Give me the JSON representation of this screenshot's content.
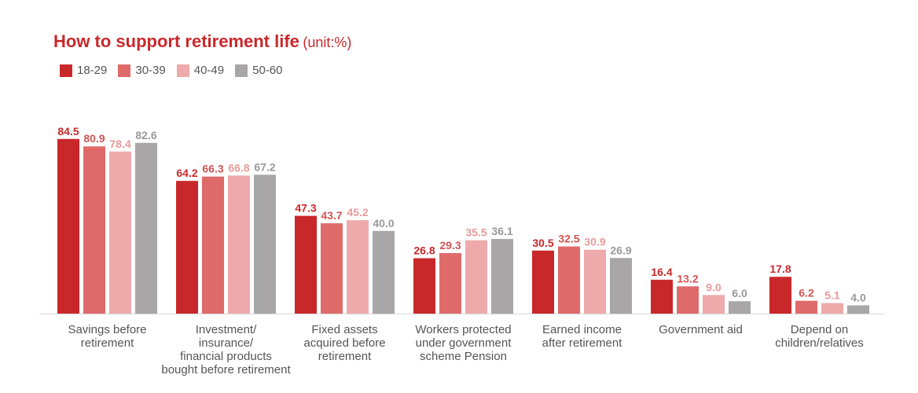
{
  "title": "How to support retirement life",
  "unit": "(unit:%)",
  "colors": [
    "#c9282b",
    "#df6a6a",
    "#eeaaaa",
    "#a8a6a6"
  ],
  "chart_data": {
    "type": "bar",
    "title": "How to support retirement life",
    "unit": "(unit:%)",
    "legend_position": "top-left",
    "grid": false,
    "categories": [
      [
        "Savings before",
        "retirement"
      ],
      [
        "Investment/",
        "insurance/",
        "financial products",
        "bought before retirement"
      ],
      [
        "Fixed assets",
        "acquired before",
        "retirement"
      ],
      [
        "Workers protected",
        "under government",
        "scheme Pension"
      ],
      [
        "Earned income",
        "after retirement"
      ],
      [
        "Government aid"
      ],
      [
        "Depend on",
        "children/relatives"
      ]
    ],
    "series": [
      {
        "name": "18-29",
        "color": "#c9282b",
        "label_color": "#c9282b",
        "values": [
          84.5,
          64.2,
          47.3,
          26.8,
          30.5,
          16.4,
          17.8
        ]
      },
      {
        "name": "30-39",
        "color": "#df6a6a",
        "label_color": "#d25555",
        "values": [
          80.9,
          66.3,
          43.7,
          29.3,
          32.5,
          13.2,
          6.2
        ]
      },
      {
        "name": "40-49",
        "color": "#eeaaaa",
        "label_color": "#e89a9a",
        "values": [
          78.4,
          66.8,
          45.2,
          35.5,
          30.9,
          9.0,
          5.1
        ]
      },
      {
        "name": "50-60",
        "color": "#a8a6a6",
        "label_color": "#9a9898",
        "values": [
          82.6,
          67.2,
          40.0,
          36.1,
          26.9,
          6.0,
          4.0
        ]
      }
    ],
    "ylim": [
      0,
      100
    ]
  }
}
